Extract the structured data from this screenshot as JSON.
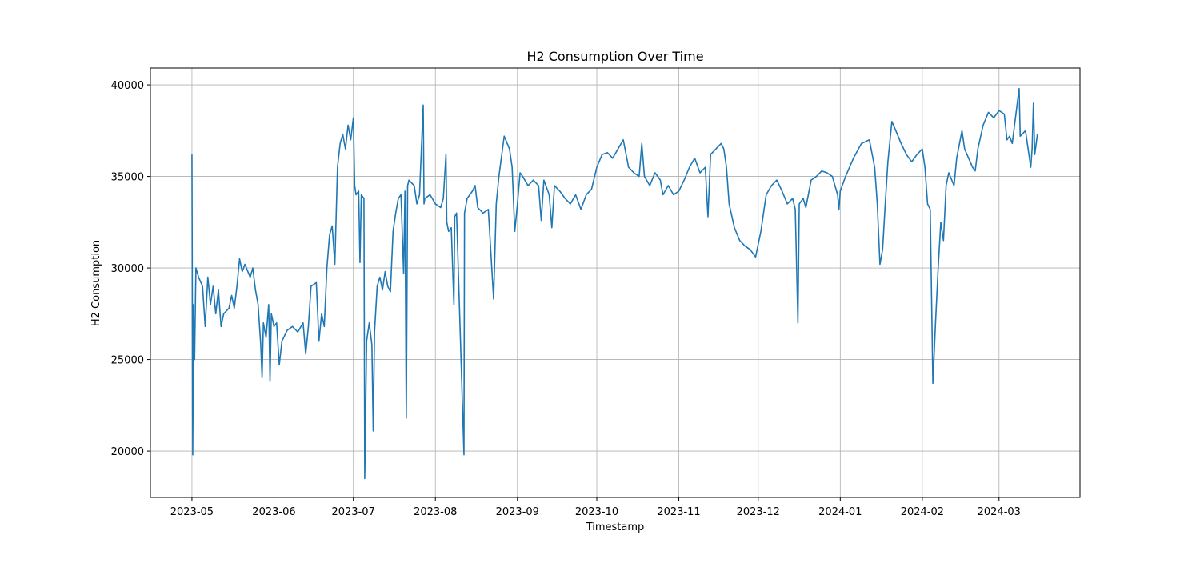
{
  "chart_data": {
    "type": "line",
    "title": "H2 Consumption Over Time",
    "x_label": "Timestamp",
    "y_label": "H2 Consumption",
    "x": [
      0,
      0.3,
      0.6,
      1,
      1.5,
      2.5,
      4,
      5,
      6,
      7,
      8,
      9,
      10,
      11,
      12,
      14,
      15,
      16,
      17,
      18,
      19,
      20,
      22,
      23,
      24,
      25,
      26,
      26.5,
      27,
      28,
      29,
      29.5,
      30,
      31,
      32,
      33,
      34,
      36,
      38,
      40,
      42,
      43,
      44,
      45,
      47,
      48,
      49,
      50,
      51,
      52,
      53,
      54,
      55,
      56,
      57,
      58,
      59,
      60,
      61,
      61.5,
      62,
      63,
      63.5,
      64,
      65,
      65.3,
      66,
      67,
      68,
      68.5,
      69,
      70,
      71,
      72,
      73,
      74,
      75,
      76,
      77,
      78,
      79,
      80,
      80.5,
      81,
      81.5,
      82,
      84,
      85,
      86,
      87.4,
      87.7,
      88,
      90,
      92,
      94,
      95,
      96,
      96.3,
      97,
      98,
      99,
      99.3,
      100,
      102.8,
      103,
      104,
      106,
      107,
      108,
      110,
      112,
      114,
      115,
      116,
      118,
      120,
      121,
      122,
      123,
      124,
      125,
      127,
      129,
      131,
      132,
      133,
      135,
      136,
      137,
      139,
      141,
      143,
      145,
      147,
      149,
      151,
      153,
      155,
      157,
      159,
      161,
      163,
      165,
      167,
      169,
      170,
      171,
      173,
      175,
      177,
      178,
      180,
      182,
      184,
      186,
      188,
      190,
      192,
      194,
      195,
      196,
      198,
      200,
      201,
      202,
      203,
      205,
      207,
      209,
      211,
      213,
      215,
      217,
      219,
      221,
      223,
      225,
      227,
      228,
      229,
      229.5,
      231,
      232,
      234,
      236,
      238,
      240,
      242,
      244,
      244.5,
      245,
      247,
      250,
      253,
      256,
      258,
      259,
      260,
      261,
      262,
      263,
      264.5,
      266,
      268,
      270,
      272,
      274,
      276,
      277,
      278,
      279,
      280,
      281,
      282,
      283,
      284,
      285,
      286,
      288,
      289,
      291,
      292,
      295,
      296,
      297,
      299,
      301,
      303,
      305,
      307,
      308,
      309,
      310,
      312.6,
      313,
      315,
      316,
      317,
      317.5,
      318,
      318.5,
      319.5
    ],
    "series": [
      {
        "name": "H2 Consumption",
        "color": "#1f77b4",
        "values": [
          36200,
          19800,
          28000,
          25000,
          30000,
          29500,
          29000,
          26800,
          29500,
          28000,
          29000,
          27500,
          28800,
          26800,
          27500,
          27800,
          28500,
          27800,
          29000,
          30500,
          29800,
          30200,
          29500,
          30000,
          28800,
          28000,
          25800,
          24000,
          27000,
          26200,
          28000,
          23800,
          27500,
          26800,
          27000,
          24700,
          26000,
          26600,
          26800,
          26500,
          27000,
          25300,
          26800,
          29000,
          29200,
          26000,
          27500,
          26800,
          30000,
          31800,
          32300,
          30200,
          35500,
          36800,
          37300,
          36500,
          37800,
          37000,
          38200,
          34500,
          34000,
          34200,
          30300,
          34000,
          33800,
          18500,
          26000,
          27000,
          25800,
          21100,
          26500,
          29000,
          29500,
          28800,
          29800,
          29000,
          28700,
          32000,
          33000,
          33800,
          34000,
          29700,
          34200,
          21800,
          34500,
          34800,
          34500,
          33500,
          34000,
          38900,
          33500,
          33800,
          34000,
          33500,
          33300,
          33800,
          36200,
          32500,
          32000,
          32200,
          28000,
          32800,
          33000,
          19800,
          33000,
          33800,
          34200,
          34500,
          33300,
          33000,
          33200,
          28300,
          33500,
          35000,
          37200,
          36500,
          35500,
          32000,
          33500,
          35200,
          35000,
          34500,
          34800,
          34500,
          32600,
          34800,
          34000,
          32200,
          34500,
          34200,
          33800,
          33500,
          34000,
          33200,
          34000,
          34300,
          35500,
          36200,
          36300,
          36000,
          36500,
          37000,
          35500,
          35200,
          35000,
          36800,
          35000,
          34500,
          35200,
          34800,
          34000,
          34500,
          34000,
          34200,
          34800,
          35500,
          36000,
          35200,
          35500,
          32800,
          36200,
          36500,
          36800,
          36500,
          35500,
          33500,
          32200,
          31500,
          31200,
          31000,
          30600,
          32000,
          34000,
          34500,
          34800,
          34200,
          33500,
          33800,
          33200,
          27000,
          33500,
          33800,
          33300,
          34800,
          35000,
          35300,
          35200,
          35000,
          34000,
          33200,
          34200,
          35000,
          36000,
          36800,
          37000,
          35500,
          33500,
          30200,
          31000,
          33500,
          35800,
          38000,
          37500,
          36800,
          36200,
          35800,
          36200,
          36500,
          35500,
          33500,
          33200,
          23700,
          27000,
          30000,
          32500,
          31500,
          34500,
          35200,
          34500,
          36000,
          37500,
          36500,
          35500,
          35300,
          36500,
          37800,
          38500,
          38200,
          38600,
          38400,
          37000,
          37200,
          36800,
          39800,
          37200,
          37500,
          36500,
          35500,
          36500,
          39000,
          36200,
          37300
        ]
      }
    ],
    "xlim": [
      -15.7,
      335.6
    ],
    "xticks": [
      {
        "value": 0,
        "label": "2023-05"
      },
      {
        "value": 31,
        "label": "2023-06"
      },
      {
        "value": 61,
        "label": "2023-07"
      },
      {
        "value": 92,
        "label": "2023-08"
      },
      {
        "value": 123,
        "label": "2023-09"
      },
      {
        "value": 153,
        "label": "2023-10"
      },
      {
        "value": 184,
        "label": "2023-11"
      },
      {
        "value": 214,
        "label": "2023-12"
      },
      {
        "value": 245,
        "label": "2024-01"
      },
      {
        "value": 276,
        "label": "2024-02"
      },
      {
        "value": 305,
        "label": "2024-03"
      }
    ],
    "ylim": [
      17470,
      40920
    ],
    "yticks": [
      20000,
      25000,
      30000,
      35000,
      40000
    ],
    "grid": true
  }
}
